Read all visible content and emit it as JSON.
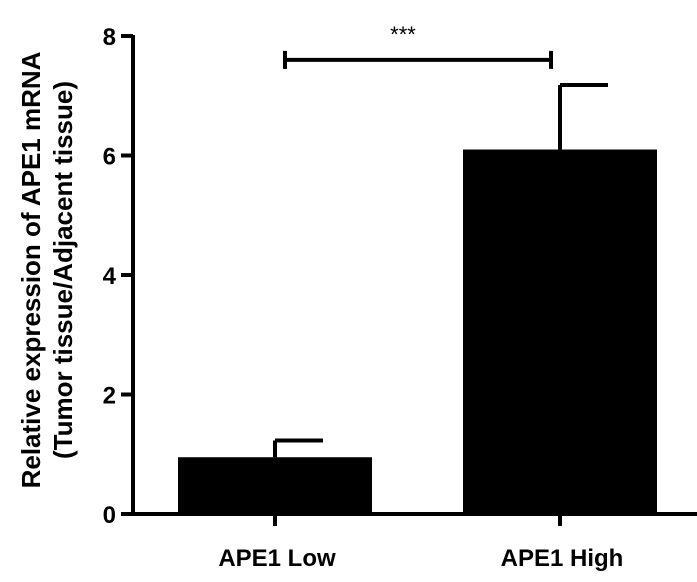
{
  "chart_data": {
    "type": "bar",
    "title": "",
    "xlabel": "",
    "ylabel_lines": [
      "Relative expression of APE1 mRNA",
      "(Tumor tissue/Adjacent tissue)"
    ],
    "categories": [
      "APE1 Low",
      "APE1 High"
    ],
    "values": [
      0.95,
      6.1
    ],
    "error_upper": [
      1.23,
      7.18
    ],
    "ylim": [
      0,
      8
    ],
    "yticks": [
      "0",
      "2",
      "4",
      "6",
      "8"
    ],
    "grid": false,
    "bar_color": "#000000",
    "significance": {
      "label": "***",
      "from": "APE1 Low",
      "to": "APE1 High",
      "y": 7.6
    }
  }
}
